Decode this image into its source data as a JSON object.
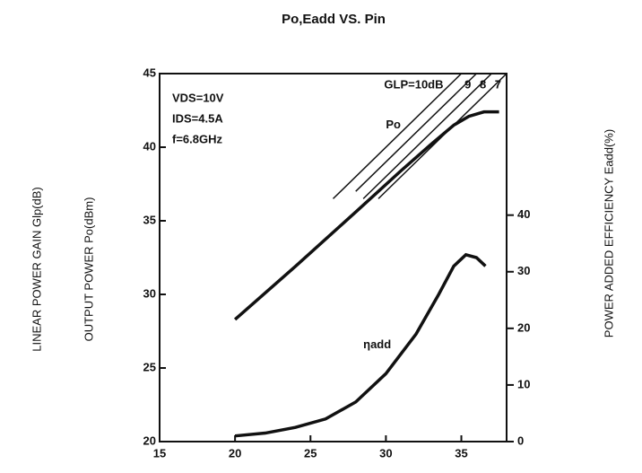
{
  "chart_data": {
    "type": "line",
    "title": "Po,Eadd VS. Pin",
    "ylabel_gain": "LINEAR POWER GAIN Glp(dB)",
    "ylabel": "OUTPUT POWER Po(dBm)",
    "y2label": "POWER ADDED EFFICIENCY Eadd(%)",
    "annotations": [
      "VDS=10V",
      "IDS=4.5A",
      "f=6.8GHz"
    ],
    "xlim": [
      15,
      38
    ],
    "xticks": [
      15,
      20,
      25,
      30,
      35
    ],
    "ylim": [
      20,
      45
    ],
    "yticks": [
      20,
      25,
      30,
      35,
      40,
      45
    ],
    "y2lim": [
      0,
      65
    ],
    "y2ticks": [
      0,
      10,
      20,
      30,
      40
    ],
    "series": [
      {
        "name": "Po",
        "color": "#111",
        "x": [
          20,
          24,
          28,
          31,
          33,
          34.5,
          35.5,
          36.5,
          37.5
        ],
        "values": [
          28.3,
          31.9,
          35.6,
          38.4,
          40.2,
          41.5,
          42.1,
          42.4,
          42.4
        ]
      },
      {
        "name": "ηadd",
        "color": "#111",
        "axis": "y2",
        "x": [
          20,
          22,
          24,
          26,
          28,
          30,
          32,
          33.5,
          34.5,
          35.3,
          36,
          36.6
        ],
        "values": [
          1,
          1.5,
          2.5,
          4,
          7,
          12,
          19,
          26,
          31,
          33,
          32.5,
          31
        ]
      },
      {
        "name": "GLP=10dB",
        "color": "#111",
        "x": [
          26.5,
          35
        ],
        "values": [
          36.5,
          45
        ]
      },
      {
        "name": "9",
        "color": "#111",
        "x": [
          28,
          36
        ],
        "values": [
          37,
          45
        ]
      },
      {
        "name": "8",
        "color": "#111",
        "x": [
          28.5,
          37
        ],
        "values": [
          36.5,
          45
        ]
      },
      {
        "name": "7",
        "color": "#111",
        "x": [
          29.5,
          38
        ],
        "values": [
          36.5,
          45
        ]
      }
    ]
  }
}
